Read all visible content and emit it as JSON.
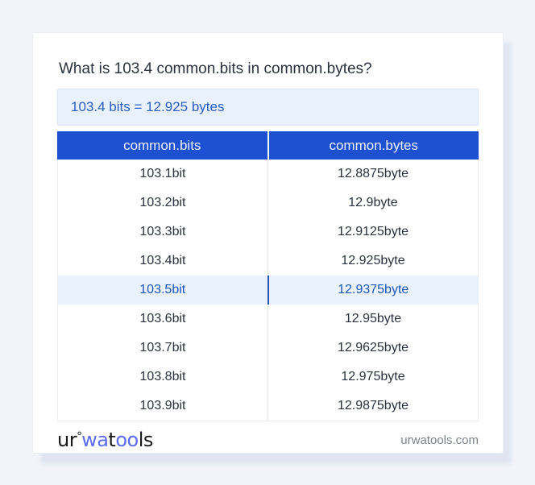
{
  "title": "What is 103.4 common.bits in common.bytes?",
  "result_text": "103.4 bits = 12.925 bytes",
  "table": {
    "headers": [
      "common.bits",
      "common.bytes"
    ],
    "rows": [
      [
        "103.1bit",
        "12.8875byte"
      ],
      [
        "103.2bit",
        "12.9byte"
      ],
      [
        "103.3bit",
        "12.9125byte"
      ],
      [
        "103.4bit",
        "12.925byte"
      ],
      [
        "103.5bit",
        "12.9375byte"
      ],
      [
        "103.6bit",
        "12.95byte"
      ],
      [
        "103.7bit",
        "12.9625byte"
      ],
      [
        "103.8bit",
        "12.975byte"
      ],
      [
        "103.9bit",
        "12.9875byte"
      ]
    ],
    "highlighted_row_index": 4
  },
  "footer": {
    "logo_parts": {
      "p1": "ur",
      "ring": "°",
      "p2": "wa",
      "p3": "t",
      "p4": "oo",
      "p5": "ls"
    },
    "domain_text": "urwatools.com"
  },
  "colors": {
    "page_background": "#f2f4f9",
    "card_background": "#ffffff",
    "table_header_bg": "#1e50d2",
    "table_header_text": "#eef3fe",
    "result_box_bg": "#e9f1fc",
    "result_text": "#2a5ec6",
    "highlight_row_bg": "#e9f2fd",
    "highlight_row_text": "#1d55c0",
    "highlight_divider": "#1e55b0",
    "body_text": "#2b313c",
    "logo_blue": "#5b6bf0",
    "domain_text": "#7d838c"
  }
}
